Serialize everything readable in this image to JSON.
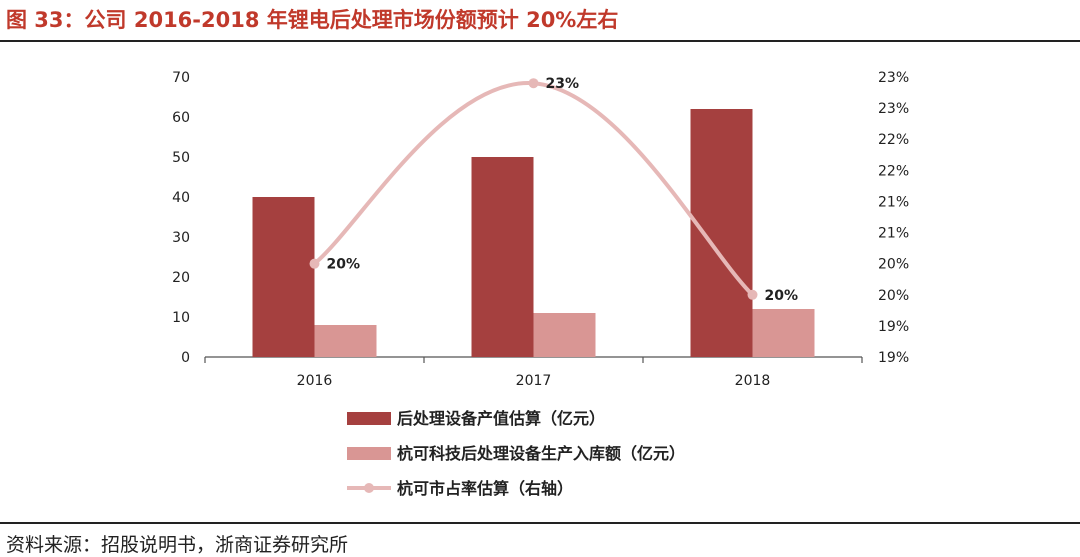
{
  "figure": {
    "title": "图 33：公司 2016-2018 年锂电后处理市场份额预计 20%左右",
    "source": "资料来源：招股说明书，浙商证券研究所"
  },
  "colors": {
    "title": "#c0392b",
    "bar_primary": "#a5403f",
    "bar_secondary": "#d99694",
    "line": "#e6b8b7"
  },
  "chart_data": {
    "type": "bar",
    "categories": [
      "2016",
      "2017",
      "2018"
    ],
    "ylim": [
      0,
      70
    ],
    "y_ticks": [
      "0",
      "10",
      "20",
      "30",
      "40",
      "50",
      "60",
      "70"
    ],
    "y2_ticks": [
      "19%",
      "19%",
      "20%",
      "20%",
      "21%",
      "21%",
      "22%",
      "22%",
      "23%",
      "23%"
    ],
    "y2lim": [
      19,
      23.5
    ],
    "series": [
      {
        "name": "后处理设备产值估算（亿元）",
        "type": "bar",
        "values": [
          40,
          50,
          62
        ]
      },
      {
        "name": "杭可科技后处理设备生产入库额（亿元）",
        "type": "bar",
        "values": [
          8,
          11,
          12
        ]
      },
      {
        "name": "杭可市占率估算（右轴）",
        "type": "line",
        "axis": "right",
        "values": [
          20.5,
          23.4,
          20.0
        ],
        "labels": [
          "20%",
          "23%",
          "20%"
        ]
      }
    ],
    "legend_position": "bottom",
    "grid": false
  }
}
